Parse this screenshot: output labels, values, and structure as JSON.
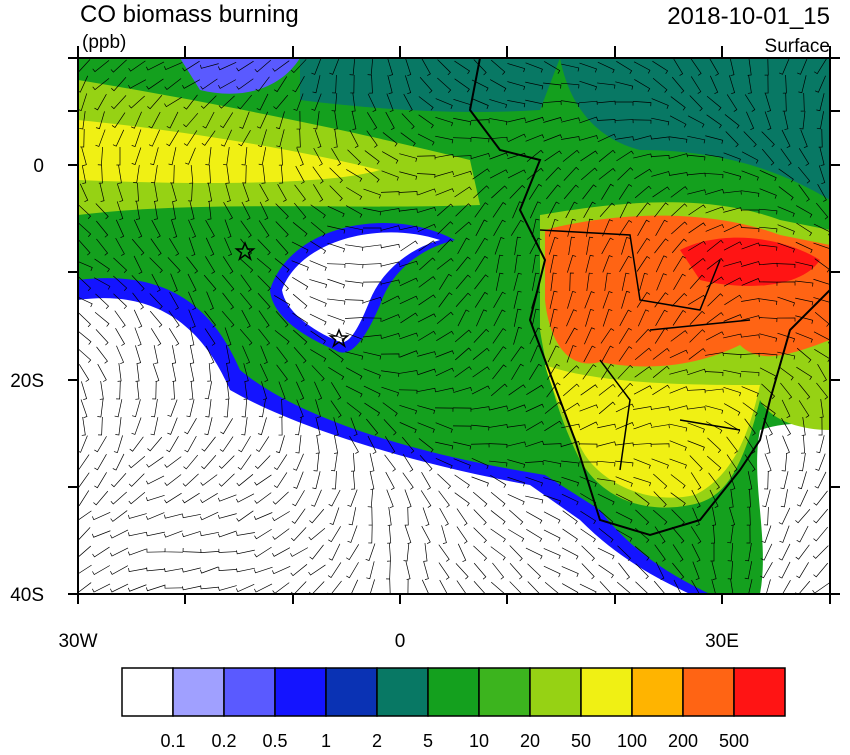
{
  "header": {
    "title": "CO biomass burning",
    "units": "(ppb)",
    "time": "2018-10-01_15",
    "level": "Surface"
  },
  "axes": {
    "y_labels": [
      "0",
      "20S",
      "40S"
    ],
    "x_labels": [
      "30W",
      "0",
      "30E"
    ]
  },
  "colorbar": {
    "colors": [
      "#ffffff",
      "#a0a0ff",
      "#5a5aff",
      "#1414ff",
      "#0a32b4",
      "#087864",
      "#14a01e",
      "#3cb41e",
      "#96d214",
      "#f0f014",
      "#ffb400",
      "#ff6414",
      "#ff1414"
    ],
    "labels": [
      "0.1",
      "0.2",
      "0.5",
      "1",
      "2",
      "5",
      "10",
      "20",
      "50",
      "100",
      "200",
      "500"
    ]
  }
}
